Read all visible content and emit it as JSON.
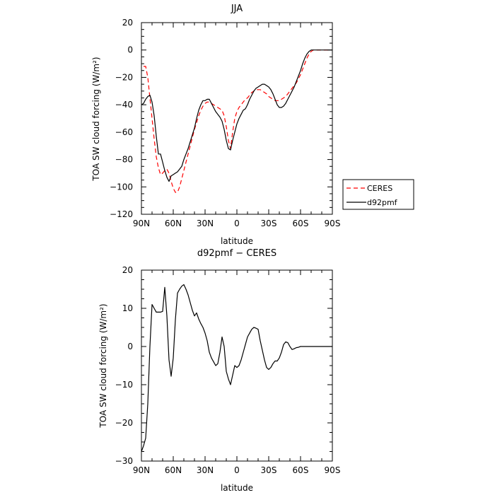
{
  "chart_data": [
    {
      "type": "line",
      "title": "JJA",
      "xlabel": "latitude",
      "ylabel": "TOA SW cloud forcing (W/m²)",
      "xlim": [
        90,
        -90
      ],
      "ylim": [
        -120,
        20
      ],
      "x_ticks": [
        90,
        60,
        30,
        0,
        -30,
        -60,
        -90
      ],
      "x_tick_labels": [
        "90N",
        "60N",
        "30N",
        "0",
        "30S",
        "60S",
        "90S"
      ],
      "y_ticks": [
        -120,
        -100,
        -80,
        -60,
        -40,
        -20,
        0,
        20
      ],
      "y_tick_labels": [
        "−120",
        "−100",
        "−80",
        "−60",
        "−40",
        "−20",
        "0",
        "20"
      ],
      "legend": {
        "placement": "right"
      },
      "series": [
        {
          "name": "CERES",
          "color": "#ff0000",
          "dash": "dashed",
          "x": [
            88,
            86,
            84,
            82,
            80,
            78,
            76,
            74,
            72,
            70,
            68,
            66,
            64,
            62,
            60,
            58,
            56,
            54,
            52,
            50,
            48,
            46,
            44,
            42,
            40,
            38,
            36,
            34,
            32,
            30,
            28,
            26,
            24,
            22,
            20,
            18,
            16,
            14,
            12,
            10,
            8,
            6,
            4,
            2,
            0,
            -2,
            -4,
            -6,
            -8,
            -10,
            -12,
            -14,
            -16,
            -18,
            -20,
            -22,
            -24,
            -26,
            -28,
            -30,
            -32,
            -34,
            -36,
            -38,
            -40,
            -42,
            -44,
            -46,
            -48,
            -50,
            -52,
            -54,
            -56,
            -58,
            -60,
            -62,
            -64,
            -66,
            -68,
            -70,
            -72,
            -74,
            -76,
            -78,
            -80,
            -82,
            -84,
            -86,
            -88
          ],
          "y": [
            -12,
            -12,
            -20,
            -35,
            -50,
            -65,
            -78,
            -86,
            -91,
            -90,
            -88,
            -87,
            -90,
            -96,
            -101,
            -104,
            -104,
            -100,
            -94,
            -88,
            -82,
            -76,
            -70,
            -64,
            -58,
            -53,
            -48,
            -44,
            -41,
            -39,
            -38,
            -38,
            -39,
            -40,
            -41,
            -42,
            -43,
            -44,
            -48,
            -56,
            -66,
            -72,
            -60,
            -50,
            -45,
            -42,
            -40,
            -38,
            -36,
            -35,
            -33,
            -31,
            -30,
            -29,
            -29,
            -29,
            -30,
            -31,
            -32,
            -34,
            -35,
            -36,
            -37,
            -37,
            -37,
            -36,
            -35,
            -34,
            -32,
            -30,
            -28,
            -26,
            -24,
            -21,
            -18,
            -14,
            -10,
            -6,
            -3,
            -1,
            0,
            0,
            0,
            0,
            0,
            0,
            0,
            0,
            0
          ]
        },
        {
          "name": "d92pmf",
          "color": "#000000",
          "dash": "solid",
          "x": [
            90,
            88,
            86,
            84,
            82,
            80,
            78,
            76,
            74,
            72,
            70,
            68,
            66,
            64,
            62,
            60,
            58,
            56,
            54,
            52,
            50,
            48,
            46,
            44,
            42,
            40,
            38,
            36,
            34,
            32,
            30,
            28,
            26,
            24,
            22,
            20,
            18,
            16,
            14,
            12,
            10,
            8,
            6,
            4,
            2,
            0,
            -2,
            -4,
            -6,
            -8,
            -10,
            -12,
            -14,
            -16,
            -18,
            -20,
            -22,
            -24,
            -26,
            -28,
            -30,
            -32,
            -34,
            -36,
            -38,
            -40,
            -42,
            -44,
            -46,
            -48,
            -50,
            -52,
            -54,
            -56,
            -58,
            -60,
            -62,
            -64,
            -66,
            -68,
            -70,
            -72,
            -74,
            -76,
            -78,
            -80,
            -82,
            -84,
            -86,
            -88,
            -90
          ],
          "y": [
            -40,
            -39,
            -36,
            -34,
            -33,
            -38,
            -48,
            -63,
            -76,
            -76,
            -82,
            -88,
            -93,
            -96,
            -92,
            -91,
            -90,
            -89,
            -87,
            -85,
            -80,
            -76,
            -72,
            -67,
            -62,
            -57,
            -50,
            -44,
            -40,
            -37,
            -37,
            -36,
            -36,
            -39,
            -42,
            -45,
            -47,
            -49,
            -52,
            -58,
            -66,
            -72,
            -73,
            -66,
            -60,
            -54,
            -50,
            -47,
            -44,
            -43,
            -40,
            -36,
            -33,
            -30,
            -28,
            -27,
            -26,
            -25,
            -25,
            -26,
            -27,
            -29,
            -32,
            -36,
            -40,
            -42,
            -42,
            -41,
            -39,
            -36,
            -33,
            -30,
            -27,
            -23,
            -19,
            -15,
            -10,
            -6,
            -3,
            -1,
            0,
            0,
            0,
            0,
            0,
            0,
            0,
            0,
            0,
            0,
            0
          ]
        }
      ]
    },
    {
      "type": "line",
      "title": "d92pmf − CERES",
      "xlabel": "latitude",
      "ylabel": "TOA SW cloud forcing (W/m²)",
      "xlim": [
        90,
        -90
      ],
      "ylim": [
        -30,
        20
      ],
      "x_ticks": [
        90,
        60,
        30,
        0,
        -30,
        -60,
        -90
      ],
      "x_tick_labels": [
        "90N",
        "60N",
        "30N",
        "0",
        "30S",
        "60S",
        "90S"
      ],
      "y_ticks": [
        -30,
        -20,
        -10,
        0,
        10,
        20
      ],
      "y_tick_labels": [
        "−30",
        "−20",
        "−10",
        "0",
        "10",
        "20"
      ],
      "series": [
        {
          "color": "#000000",
          "dash": "solid",
          "x": [
            90,
            88,
            86,
            84,
            82,
            80,
            78,
            76,
            74,
            72,
            70,
            68,
            66,
            64,
            62,
            60,
            58,
            56,
            54,
            52,
            50,
            48,
            46,
            44,
            42,
            40,
            38,
            36,
            34,
            32,
            30,
            28,
            26,
            24,
            22,
            20,
            18,
            16,
            14,
            12,
            10,
            8,
            6,
            4,
            2,
            0,
            -2,
            -4,
            -6,
            -8,
            -10,
            -12,
            -14,
            -16,
            -18,
            -20,
            -22,
            -24,
            -26,
            -28,
            -30,
            -32,
            -34,
            -36,
            -38,
            -40,
            -42,
            -44,
            -46,
            -48,
            -50,
            -52,
            -54,
            -56,
            -58,
            -60,
            -62,
            -64,
            -66,
            -68,
            -70,
            -72,
            -74,
            -76,
            -78,
            -80,
            -82,
            -84,
            -86,
            -88,
            -90
          ],
          "y": [
            -27.5,
            -26,
            -24,
            -15,
            0,
            11,
            10,
            9,
            9,
            9,
            9.2,
            15.5,
            8,
            -3.5,
            -7.8,
            -3,
            7,
            14,
            15,
            15.8,
            16.2,
            15,
            13.5,
            11.5,
            9.5,
            8,
            8.8,
            7.2,
            6,
            5,
            3.5,
            1.5,
            -1.5,
            -3,
            -4,
            -5,
            -4.5,
            -1.5,
            2.5,
            0,
            -6.5,
            -8.5,
            -10,
            -7.5,
            -5,
            -5.5,
            -5,
            -3.5,
            -1.5,
            0.5,
            2.5,
            3.5,
            4.5,
            5,
            4.8,
            4.5,
            1.5,
            -1,
            -3.5,
            -5.5,
            -6,
            -5.5,
            -4.5,
            -3.8,
            -3.8,
            -3,
            -1.5,
            0.5,
            1.2,
            1,
            0,
            -0.8,
            -0.6,
            -0.3,
            -0.2,
            0,
            0,
            0,
            0,
            0,
            0,
            0,
            0,
            0,
            0,
            0,
            0,
            0,
            0,
            0,
            0
          ]
        }
      ]
    }
  ]
}
